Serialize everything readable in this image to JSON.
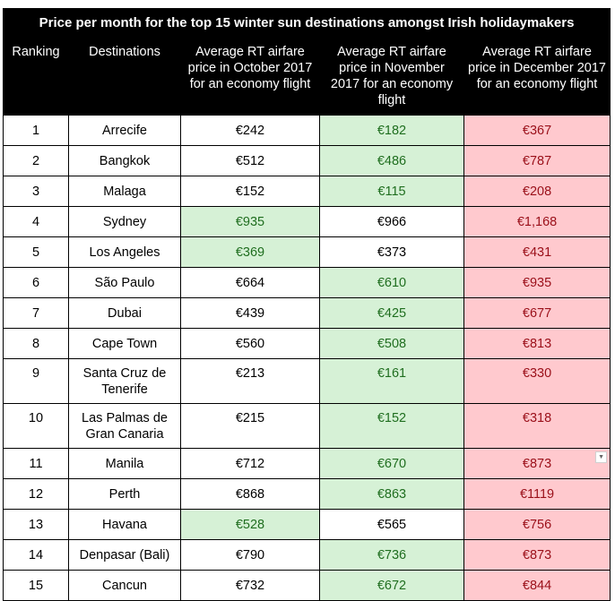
{
  "title": "Price per month for the top 15 winter sun destinations amongst Irish holidaymakers",
  "headers": {
    "ranking": "Ranking",
    "destinations": "Destinations",
    "october": "Average RT airfare price in October 2017 for an economy flight",
    "november": "Average RT airfare price in November 2017 for an economy flight",
    "december": "Average RT airfare price in December 2017 for an economy flight"
  },
  "colors": {
    "header_bg": "#000000",
    "green_bg": "#d6f1d6",
    "green_text": "#1f6e1f",
    "red_bg": "#ffc9ce",
    "red_text": "#9a0f19"
  },
  "dropdown_icon": "chevron-down-icon",
  "rows": [
    {
      "rank": "1",
      "dest": "Arrecife",
      "oct": "€242",
      "nov": "€182",
      "dec": "€367",
      "oct_hl": "plain",
      "nov_hl": "green"
    },
    {
      "rank": "2",
      "dest": "Bangkok",
      "oct": "€512",
      "nov": "€486",
      "dec": "€787",
      "oct_hl": "plain",
      "nov_hl": "green"
    },
    {
      "rank": "3",
      "dest": "Malaga",
      "oct": "€152",
      "nov": "€115",
      "dec": "€208",
      "oct_hl": "plain",
      "nov_hl": "green"
    },
    {
      "rank": "4",
      "dest": "Sydney",
      "oct": "€935",
      "nov": "€966",
      "dec": "€1,168",
      "oct_hl": "green",
      "nov_hl": "plain"
    },
    {
      "rank": "5",
      "dest": "Los Angeles",
      "oct": "€369",
      "nov": "€373",
      "dec": "€431",
      "oct_hl": "green",
      "nov_hl": "plain"
    },
    {
      "rank": "6",
      "dest": "São Paulo",
      "oct": "€664",
      "nov": "€610",
      "dec": "€935",
      "oct_hl": "plain",
      "nov_hl": "green"
    },
    {
      "rank": "7",
      "dest": "Dubai",
      "oct": "€439",
      "nov": "€425",
      "dec": "€677",
      "oct_hl": "plain",
      "nov_hl": "green"
    },
    {
      "rank": "8",
      "dest": "Cape Town",
      "oct": "€560",
      "nov": "€508",
      "dec": "€813",
      "oct_hl": "plain",
      "nov_hl": "green"
    },
    {
      "rank": "9",
      "dest": "Santa Cruz de Tenerife",
      "oct": "€213",
      "nov": "€161",
      "dec": "€330",
      "oct_hl": "plain",
      "nov_hl": "green"
    },
    {
      "rank": "10",
      "dest": "Las Palmas de Gran Canaria",
      "oct": "€215",
      "nov": "€152",
      "dec": "€318",
      "oct_hl": "plain",
      "nov_hl": "green"
    },
    {
      "rank": "11",
      "dest": "Manila",
      "oct": "€712",
      "nov": "€670",
      "dec": "€873",
      "oct_hl": "plain",
      "nov_hl": "green"
    },
    {
      "rank": "12",
      "dest": "Perth",
      "oct": "€868",
      "nov": "€863",
      "dec": "€1119",
      "oct_hl": "plain",
      "nov_hl": "green"
    },
    {
      "rank": "13",
      "dest": "Havana",
      "oct": "€528",
      "nov": "€565",
      "dec": "€756",
      "oct_hl": "green",
      "nov_hl": "plain"
    },
    {
      "rank": "14",
      "dest": "Denpasar (Bali)",
      "oct": "€790",
      "nov": "€736",
      "dec": "€873",
      "oct_hl": "plain",
      "nov_hl": "green"
    },
    {
      "rank": "15",
      "dest": "Cancun",
      "oct": "€732",
      "nov": "€672",
      "dec": "€844",
      "oct_hl": "plain",
      "nov_hl": "green"
    }
  ]
}
